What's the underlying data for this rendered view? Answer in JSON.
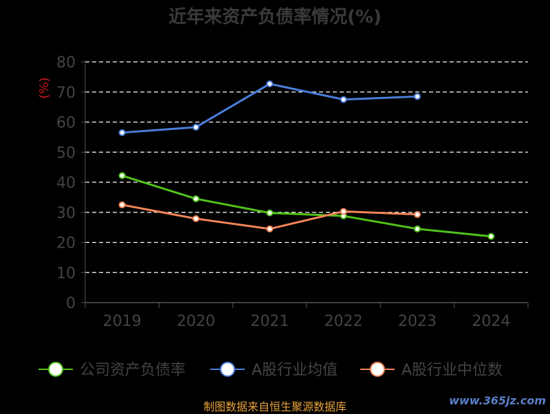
{
  "chart_data": {
    "type": "line",
    "title": "近年来资产负债率情况(%)",
    "ylabel": "(%)",
    "ylim": [
      0,
      80
    ],
    "yticks": [
      0,
      10,
      20,
      30,
      40,
      50,
      60,
      70,
      80
    ],
    "categories": [
      "2019",
      "2020",
      "2021",
      "2022",
      "2023",
      "2024"
    ],
    "grid": true,
    "legend_position": "bottom",
    "series": [
      {
        "name": "公司资产负债率",
        "color": "#52c41a",
        "values": [
          42.2,
          34.5,
          29.8,
          28.8,
          24.5,
          22.0
        ]
      },
      {
        "name": "A股行业均值",
        "color": "#4a7fdc",
        "values": [
          56.5,
          58.3,
          72.7,
          67.5,
          68.5,
          null
        ]
      },
      {
        "name": "A股行业中位数",
        "color": "#f4865a",
        "values": [
          32.5,
          27.9,
          24.5,
          30.3,
          29.3,
          null
        ]
      }
    ]
  },
  "footer": {
    "source": "制图数据来自恒生聚源数据库",
    "watermark": "www.365jz.com"
  }
}
